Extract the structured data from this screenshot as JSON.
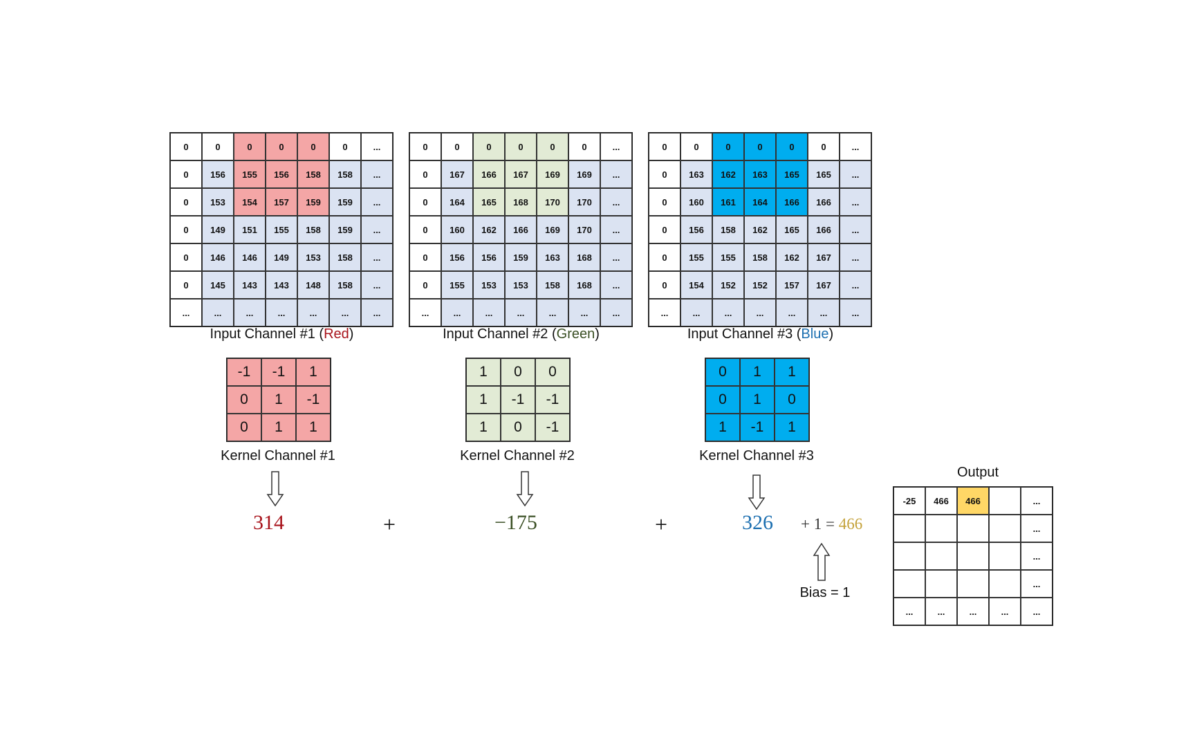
{
  "colors": {
    "red_highlight": "#f4a6a6",
    "green_highlight": "#e2ebd5",
    "blue_highlight": "#00adef",
    "pale_blue": "#dbe3f2",
    "output_highlight": "#ffd766",
    "red_text": "#a8131b",
    "green_text": "#3a4f24",
    "blue_text": "#1c6fb0",
    "gold_text": "#c4a23a"
  },
  "inputs": [
    {
      "label_prefix": "Input Channel #1 (",
      "label_color_word": "Red",
      "label_suffix": ")",
      "highlight": "red",
      "rows": [
        [
          "0",
          "0",
          "0",
          "0",
          "0",
          "0",
          "..."
        ],
        [
          "0",
          "156",
          "155",
          "156",
          "158",
          "158",
          "..."
        ],
        [
          "0",
          "153",
          "154",
          "157",
          "159",
          "159",
          "..."
        ],
        [
          "0",
          "149",
          "151",
          "155",
          "158",
          "159",
          "..."
        ],
        [
          "0",
          "146",
          "146",
          "149",
          "153",
          "158",
          "..."
        ],
        [
          "0",
          "145",
          "143",
          "143",
          "148",
          "158",
          "..."
        ],
        [
          "...",
          "...",
          "...",
          "...",
          "...",
          "...",
          "..."
        ]
      ]
    },
    {
      "label_prefix": "Input Channel #2 (",
      "label_color_word": "Green",
      "label_suffix": ")",
      "highlight": "green",
      "rows": [
        [
          "0",
          "0",
          "0",
          "0",
          "0",
          "0",
          "..."
        ],
        [
          "0",
          "167",
          "166",
          "167",
          "169",
          "169",
          "..."
        ],
        [
          "0",
          "164",
          "165",
          "168",
          "170",
          "170",
          "..."
        ],
        [
          "0",
          "160",
          "162",
          "166",
          "169",
          "170",
          "..."
        ],
        [
          "0",
          "156",
          "156",
          "159",
          "163",
          "168",
          "..."
        ],
        [
          "0",
          "155",
          "153",
          "153",
          "158",
          "168",
          "..."
        ],
        [
          "...",
          "...",
          "...",
          "...",
          "...",
          "...",
          "..."
        ]
      ]
    },
    {
      "label_prefix": "Input Channel #3 (",
      "label_color_word": "Blue",
      "label_suffix": ")",
      "highlight": "blue",
      "rows": [
        [
          "0",
          "0",
          "0",
          "0",
          "0",
          "0",
          "..."
        ],
        [
          "0",
          "163",
          "162",
          "163",
          "165",
          "165",
          "..."
        ],
        [
          "0",
          "160",
          "161",
          "164",
          "166",
          "166",
          "..."
        ],
        [
          "0",
          "156",
          "158",
          "162",
          "165",
          "166",
          "..."
        ],
        [
          "0",
          "155",
          "155",
          "158",
          "162",
          "167",
          "..."
        ],
        [
          "0",
          "154",
          "152",
          "152",
          "157",
          "167",
          "..."
        ],
        [
          "...",
          "...",
          "...",
          "...",
          "...",
          "...",
          "..."
        ]
      ]
    }
  ],
  "kernels": [
    {
      "label": "Kernel Channel #1",
      "highlight": "red",
      "rows": [
        [
          "-1",
          "-1",
          "1"
        ],
        [
          "0",
          "1",
          "-1"
        ],
        [
          "0",
          "1",
          "1"
        ]
      ],
      "result": "314"
    },
    {
      "label": "Kernel Channel #2",
      "highlight": "green",
      "rows": [
        [
          "1",
          "0",
          "0"
        ],
        [
          "1",
          "-1",
          "-1"
        ],
        [
          "1",
          "0",
          "-1"
        ]
      ],
      "result": "−175"
    },
    {
      "label": "Kernel Channel #3",
      "highlight": "blue",
      "rows": [
        [
          "0",
          "1",
          "1"
        ],
        [
          "0",
          "1",
          "0"
        ],
        [
          "1",
          "-1",
          "1"
        ]
      ],
      "result": "326"
    }
  ],
  "plus_sign": "+",
  "bias_expression": {
    "plus_one": "+ 1 =",
    "total": "466"
  },
  "bias_label": "Bias = 1",
  "output": {
    "title": "Output",
    "rows": [
      [
        "-25",
        "466",
        "466",
        "",
        "..."
      ],
      [
        "",
        "",
        "",
        "",
        "..."
      ],
      [
        "",
        "",
        "",
        "",
        "..."
      ],
      [
        "",
        "",
        "",
        "",
        "..."
      ],
      [
        "...",
        "...",
        "...",
        "...",
        "..."
      ]
    ]
  }
}
